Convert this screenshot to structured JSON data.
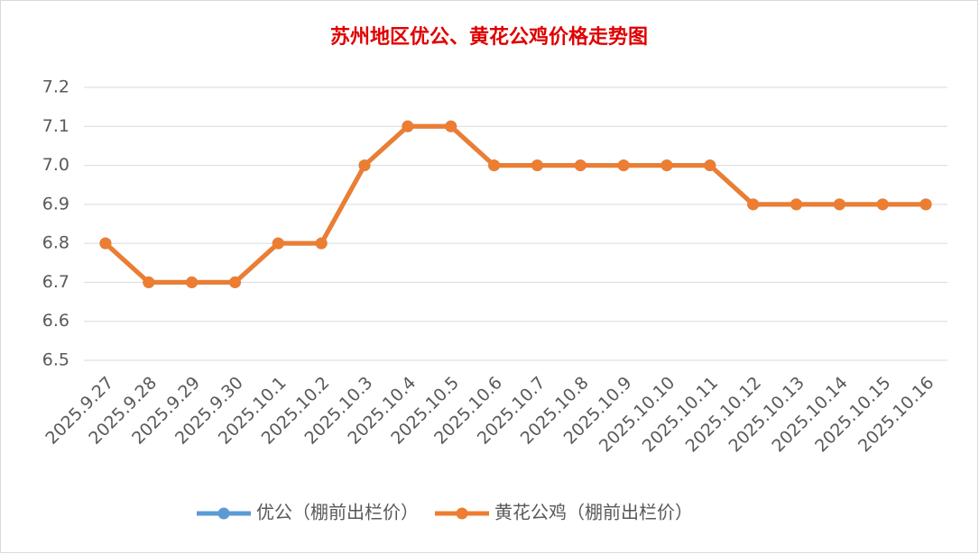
{
  "chart_data": {
    "type": "line",
    "title": "苏州地区优公、黄花公鸡价格走势图",
    "categories": [
      "2025.9.27",
      "2025.9.28",
      "2025.9.29",
      "2025.9.30",
      "2025.10.1",
      "2025.10.2",
      "2025.10.3",
      "2025.10.4",
      "2025.10.5",
      "2025.10.6",
      "2025.10.7",
      "2025.10.8",
      "2025.10.9",
      "2025.10.10",
      "2025.10.11",
      "2025.10.12",
      "2025.10.13",
      "2025.10.14",
      "2025.10.15",
      "2025.10.16"
    ],
    "series": [
      {
        "name": "优公（棚前出栏价）",
        "color": "#5b9bd5",
        "values": [
          6.8,
          6.7,
          6.7,
          6.7,
          6.8,
          6.8,
          7.0,
          7.1,
          7.1,
          7.0,
          7.0,
          7.0,
          7.0,
          7.0,
          7.0,
          6.9,
          6.9,
          6.9,
          6.9,
          6.9
        ]
      },
      {
        "name": "黄花公鸡（棚前出栏价）",
        "color": "#ed7d31",
        "values": [
          6.8,
          6.7,
          6.7,
          6.7,
          6.8,
          6.8,
          7.0,
          7.1,
          7.1,
          7.0,
          7.0,
          7.0,
          7.0,
          7.0,
          7.0,
          6.9,
          6.9,
          6.9,
          6.9,
          6.9
        ]
      }
    ],
    "ylim": [
      6.5,
      7.2
    ],
    "yticks": [
      6.5,
      6.6,
      6.7,
      6.8,
      6.9,
      {
        "value": 7,
        "label": "7.0"
      },
      7.1,
      7.2
    ],
    "grid": true,
    "legend": "bottom"
  }
}
